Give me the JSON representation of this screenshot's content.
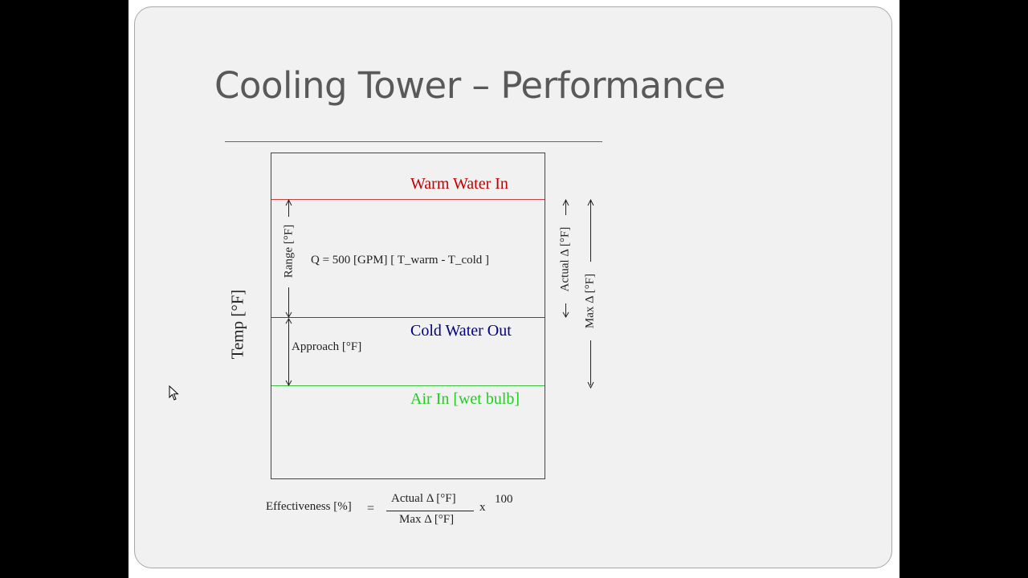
{
  "slide": {
    "title": "Cooling Tower – Performance"
  },
  "diagram": {
    "warm_water_label": "Warm Water In",
    "cold_water_label": "Cold Water Out",
    "air_in_label": "Air In [wet bulb]",
    "heat_equation": "Q = 500 [GPM] [ T_warm  - T_cold ]",
    "approach_label": "Approach  [°F]",
    "range_label": "Range [°F]",
    "temp_axis_label": "Temp [°F]",
    "actual_delta_label": "Actual Δ  [°F]",
    "max_delta_label": "Max Δ  [°F]",
    "colors": {
      "warm": "#c00000",
      "cold": "#000080",
      "air": "#22cc22"
    }
  },
  "formula": {
    "lhs": "Effectiveness [%]",
    "equals": "=",
    "numerator": "Actual Δ  [°F]",
    "denominator": "Max Δ  [°F]",
    "times": "x",
    "factor": "100"
  }
}
